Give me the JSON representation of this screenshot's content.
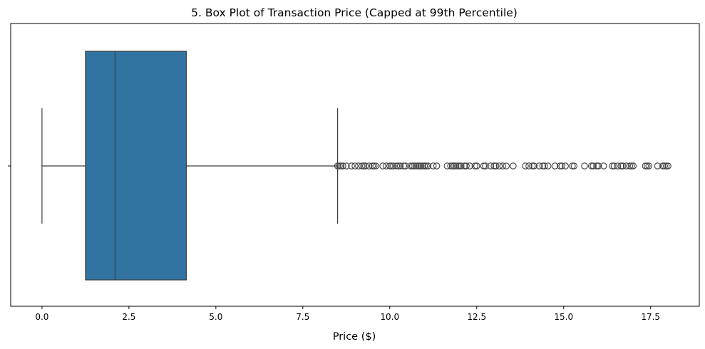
{
  "chart_data": {
    "type": "box",
    "title": "5. Box Plot of Transaction Price (Capped at 99th Percentile)",
    "xlabel": "Price ($)",
    "ylabel": "",
    "xlim": [
      -0.9,
      18.9
    ],
    "xticks": [
      0.0,
      2.5,
      5.0,
      7.5,
      10.0,
      12.5,
      15.0,
      17.5
    ],
    "xtick_labels": [
      "0.0",
      "2.5",
      "5.0",
      "7.5",
      "10.0",
      "12.5",
      "15.0",
      "17.5"
    ],
    "grid": false,
    "legend": "none",
    "box": {
      "whisker_low": 0.0,
      "q1": 1.25,
      "median": 2.1,
      "q3": 4.15,
      "whisker_high": 8.5,
      "color": "#3274a1",
      "edge_color": "#3d3d3d"
    },
    "outliers": [
      8.5,
      8.55,
      8.6,
      8.65,
      8.75,
      8.9,
      9.0,
      9.1,
      9.2,
      9.25,
      9.3,
      9.4,
      9.5,
      9.55,
      9.6,
      9.8,
      9.9,
      10.0,
      10.05,
      10.1,
      10.2,
      10.25,
      10.3,
      10.4,
      10.45,
      10.6,
      10.65,
      10.7,
      10.75,
      10.8,
      10.85,
      10.9,
      10.95,
      11.0,
      11.05,
      11.1,
      11.25,
      11.35,
      11.65,
      11.75,
      11.8,
      11.85,
      11.9,
      11.95,
      12.0,
      12.05,
      12.15,
      12.2,
      12.3,
      12.45,
      12.5,
      12.7,
      12.75,
      12.9,
      13.0,
      13.05,
      13.15,
      13.25,
      13.35,
      13.55,
      13.9,
      14.0,
      14.1,
      14.15,
      14.3,
      14.4,
      14.45,
      14.55,
      14.75,
      14.9,
      14.95,
      15.05,
      15.25,
      15.3,
      15.6,
      15.8,
      15.85,
      15.95,
      16.0,
      16.15,
      16.4,
      16.45,
      16.55,
      16.65,
      16.7,
      16.8,
      16.9,
      16.95,
      17.0,
      17.35,
      17.4,
      17.45,
      17.7,
      17.85,
      17.9,
      17.95,
      18.0
    ]
  }
}
